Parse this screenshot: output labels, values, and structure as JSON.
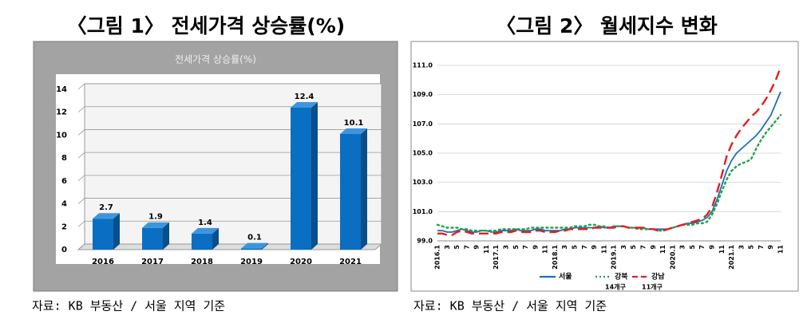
{
  "chart_data": [
    {
      "type": "bar3d",
      "caption": "〈그림 1〉 전세가격 상승률(%)",
      "title": "전세가격 상승률(%)",
      "categories": [
        "2016",
        "2017",
        "2018",
        "2019",
        "2020",
        "2021"
      ],
      "values": [
        2.7,
        1.9,
        1.4,
        0.1,
        12.4,
        10.1
      ],
      "color": "#0a6fc2",
      "ylim": [
        0,
        14
      ],
      "yticks": [
        0,
        2,
        4,
        6,
        8,
        10,
        12,
        14
      ],
      "grid": true,
      "source": "자료: KB 부동산 / 서울 지역 기준"
    },
    {
      "type": "line",
      "caption": "〈그림 2〉 월세지수 변화",
      "categories": [
        "2016.1",
        null,
        "3",
        null,
        "5",
        null,
        "7",
        null,
        "9",
        null,
        "11",
        null,
        "2017.1",
        null,
        "3",
        null,
        "5",
        null,
        "7",
        null,
        "9",
        null,
        "11",
        null,
        "2018.1",
        null,
        "3",
        null,
        "5",
        null,
        "7",
        null,
        "9",
        null,
        "11",
        null,
        "2019.1",
        null,
        "3",
        null,
        "5",
        null,
        "7",
        null,
        "9",
        null,
        "11",
        null,
        "2020.1",
        null,
        "3",
        null,
        "5",
        null,
        "7",
        null,
        "9",
        null,
        "11",
        null,
        "2021.1",
        null,
        "3",
        null,
        "5",
        null,
        "7",
        null,
        "9",
        null,
        "11"
      ],
      "series": [
        {
          "name": "서울",
          "color": "#1f6fb2",
          "style": "solid",
          "values": [
            99.7,
            99.7,
            99.6,
            99.6,
            99.7,
            99.8,
            99.7,
            99.6,
            99.6,
            99.7,
            99.7,
            99.6,
            99.6,
            99.7,
            99.7,
            99.7,
            99.8,
            99.7,
            99.7,
            99.7,
            99.8,
            99.8,
            99.7,
            99.7,
            99.7,
            99.7,
            99.8,
            99.8,
            99.9,
            99.9,
            99.9,
            99.9,
            99.9,
            100.0,
            99.9,
            99.9,
            100.0,
            100.0,
            100.0,
            99.9,
            99.9,
            99.9,
            99.9,
            99.8,
            99.8,
            99.8,
            99.8,
            99.8,
            99.9,
            100.0,
            100.1,
            100.2,
            100.2,
            100.3,
            100.4,
            100.6,
            101.0,
            101.8,
            102.8,
            103.8,
            104.5,
            105.0,
            105.3,
            105.6,
            105.9,
            106.2,
            106.6,
            107.1,
            107.6,
            108.4,
            109.2
          ]
        },
        {
          "name": "강북",
          "note": "14개구",
          "color": "#1fa34a",
          "style": "dotted",
          "values": [
            100.1,
            100.0,
            99.9,
            99.9,
            99.9,
            99.8,
            99.8,
            99.7,
            99.7,
            99.7,
            99.7,
            99.7,
            99.7,
            99.8,
            99.8,
            99.8,
            99.8,
            99.8,
            99.8,
            99.9,
            99.9,
            99.9,
            99.9,
            99.9,
            99.9,
            99.9,
            99.9,
            99.9,
            100.0,
            100.0,
            100.0,
            100.1,
            100.1,
            100.0,
            100.0,
            99.9,
            100.0,
            100.0,
            100.0,
            99.9,
            99.9,
            99.8,
            99.8,
            99.8,
            99.8,
            99.7,
            99.7,
            99.8,
            99.9,
            100.0,
            100.1,
            100.1,
            100.1,
            100.2,
            100.2,
            100.3,
            100.8,
            101.5,
            102.4,
            103.2,
            103.8,
            104.1,
            104.3,
            104.4,
            104.6,
            105.3,
            105.9,
            106.4,
            106.8,
            107.2,
            107.6
          ]
        },
        {
          "name": "강남",
          "note": "11개구",
          "color": "#e02020",
          "style": "dashed",
          "values": [
            99.5,
            99.5,
            99.4,
            99.4,
            99.6,
            99.7,
            99.6,
            99.5,
            99.5,
            99.5,
            99.5,
            99.5,
            99.5,
            99.6,
            99.6,
            99.6,
            99.7,
            99.6,
            99.6,
            99.6,
            99.7,
            99.7,
            99.6,
            99.6,
            99.6,
            99.7,
            99.7,
            99.8,
            99.8,
            99.8,
            99.8,
            99.8,
            99.9,
            99.9,
            99.9,
            99.9,
            99.9,
            100.0,
            100.0,
            99.9,
            99.9,
            99.9,
            99.9,
            99.8,
            99.8,
            99.7,
            99.7,
            99.8,
            99.9,
            100.0,
            100.1,
            100.2,
            100.3,
            100.4,
            100.5,
            100.8,
            101.3,
            102.3,
            103.5,
            104.8,
            105.6,
            106.2,
            106.7,
            107.1,
            107.5,
            107.8,
            108.2,
            108.7,
            109.3,
            110.0,
            110.9
          ]
        }
      ],
      "ylim": [
        99,
        111.6
      ],
      "yticks": [
        {
          "value": 99,
          "label": "99.0"
        },
        {
          "value": 101,
          "label": "101.0"
        },
        {
          "value": 103,
          "label": "103.0"
        },
        {
          "value": 105,
          "label": "105.0"
        },
        {
          "value": 107,
          "label": "107.0"
        },
        {
          "value": 109,
          "label": "109.0"
        },
        {
          "value": 111,
          "label": "111.0"
        }
      ],
      "grid": true,
      "source": "자료: KB 부동산 / 서울 지역 기준"
    }
  ]
}
